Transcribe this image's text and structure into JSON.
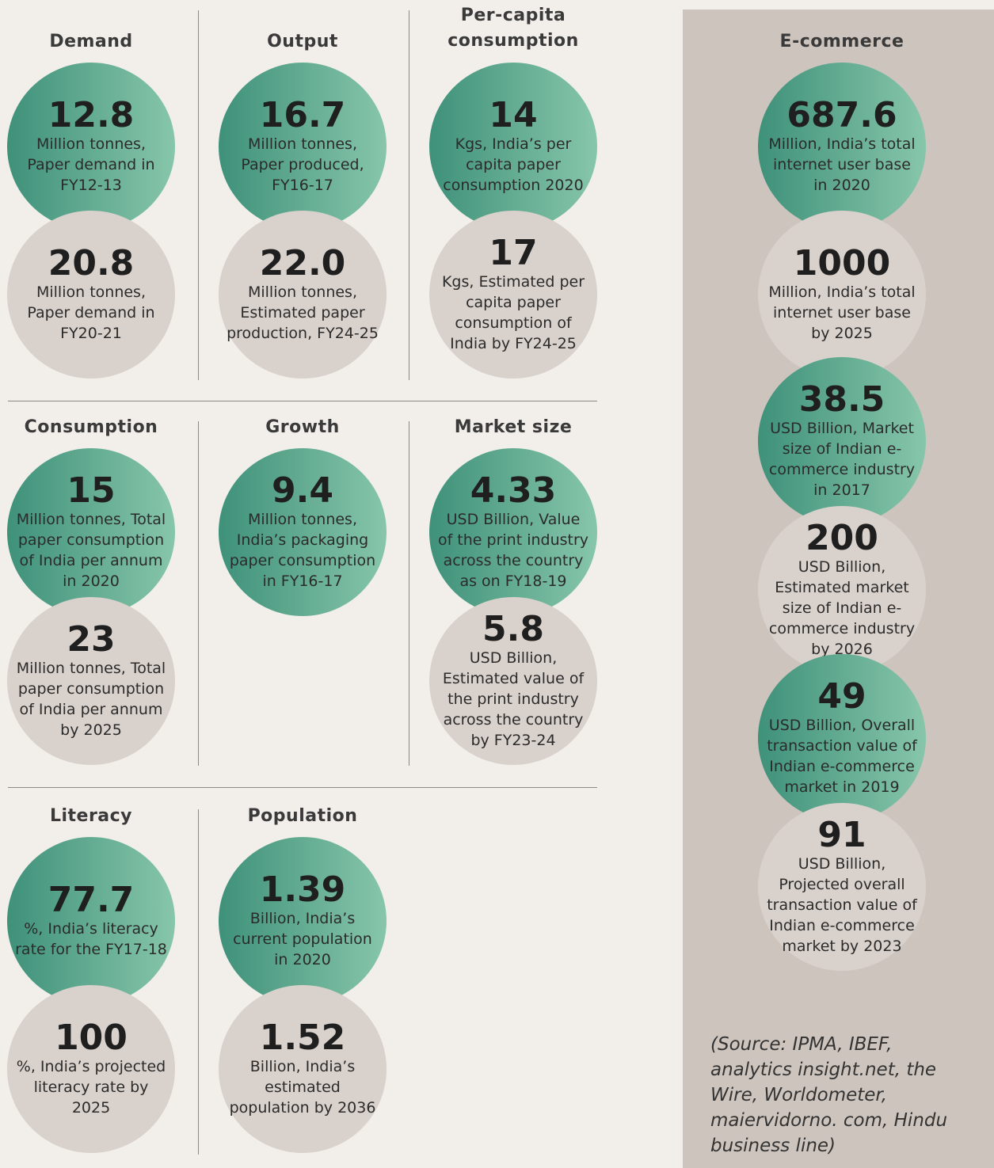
{
  "panels": [
    {
      "title": "Demand",
      "items": [
        {
          "value": "12.8",
          "text": "Million tonnes, Paper demand in FY12-13"
        },
        {
          "value": "20.8",
          "text": "Million tonnes, Paper demand in FY20-21"
        }
      ]
    },
    {
      "title": "Output",
      "items": [
        {
          "value": "16.7",
          "text": "Million tonnes, Paper produced, FY16-17"
        },
        {
          "value": "22.0",
          "text": "Million tonnes, Estimated paper production, FY24-25"
        }
      ]
    },
    {
      "title": "Per-capita consumption",
      "items": [
        {
          "value": "14",
          "text": "Kgs, India’s per capita paper consumption 2020"
        },
        {
          "value": "17",
          "text": "Kgs, Estimated per capita paper consumption of India by FY24-25"
        }
      ]
    },
    {
      "title": "Consumption",
      "items": [
        {
          "value": "15",
          "text": "Million tonnes, Total paper consumption of India per annum in 2020"
        },
        {
          "value": "23",
          "text": "Million tonnes, Total paper consumption of India per annum by 2025"
        }
      ]
    },
    {
      "title": "Growth",
      "items": [
        {
          "value": "9.4",
          "text": "Million tonnes, India’s packaging paper consumption in FY16-17"
        }
      ]
    },
    {
      "title": "Market size",
      "items": [
        {
          "value": "4.33",
          "text": "USD Billion, Value of the print industry across the country as on FY18-19"
        },
        {
          "value": "5.8",
          "text": "USD Billion, Estimated value of the print industry across the country by FY23-24"
        }
      ]
    },
    {
      "title": "Literacy",
      "items": [
        {
          "value": "77.7",
          "text": "%, India’s literacy rate for the FY17-18"
        },
        {
          "value": "100",
          "text": "%, India’s projected literacy rate by 2025"
        }
      ]
    },
    {
      "title": "Population",
      "items": [
        {
          "value": "1.39",
          "text": "Billion, India’s current population in 2020"
        },
        {
          "value": "1.52",
          "text": "Billion, India’s estimated population by 2036"
        }
      ]
    },
    {
      "title": "E-commerce",
      "items": [
        {
          "value": "687.6",
          "text": "Million, India’s total internet user base in 2020"
        },
        {
          "value": "1000",
          "text": "Million, India’s total internet user base by 2025"
        },
        {
          "value": "38.5",
          "text": "USD Billion, Market size of Indian e-commerce industry in 2017"
        },
        {
          "value": "200",
          "text": "USD Billion, Estimated market size of Indian e-commerce industry by 2026"
        },
        {
          "value": "49",
          "text": "USD Billion, Overall transaction value of Indian e-commerce market in 2019"
        },
        {
          "value": "91",
          "text": "USD Billion, Projected overall transaction value of Indian e-commerce market by 2023"
        }
      ]
    }
  ],
  "source": "(Source: IPMA, IBEF, analytics insight.net, the Wire, Worldometer, maiervidorno. com, Hindu business line)"
}
